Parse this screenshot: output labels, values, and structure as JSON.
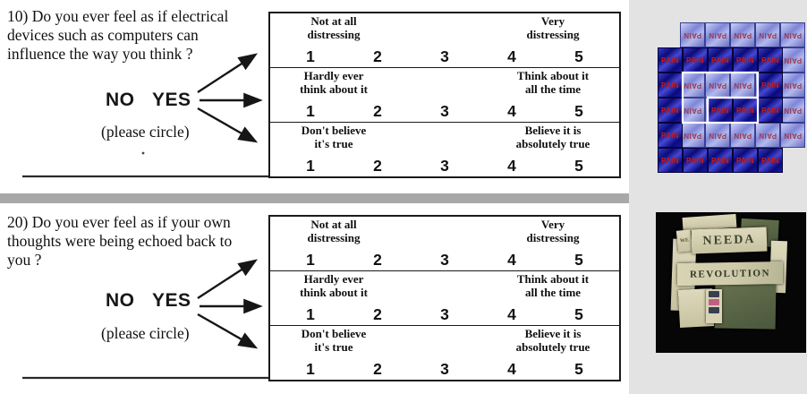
{
  "page": {
    "left_bg": "#ffffff",
    "right_panel_bg": "#e3e3e3",
    "divider_color": "#a8a8a8"
  },
  "questionnaire": {
    "questions": [
      {
        "lines": [
          "10) Do you ever feel as if electrical",
          "devices such as computers can",
          "influence the way you think ?"
        ],
        "no_label": "NO",
        "yes_label": "YES",
        "circle_hint": "(please circle)"
      },
      {
        "lines": [
          "20) Do you ever feel as if your own",
          "thoughts were being echoed back to",
          "you ?"
        ],
        "no_label": "NO",
        "yes_label": "YES",
        "circle_hint": "(please circle)"
      }
    ],
    "scale_rows": [
      {
        "left_line1": "Not at all",
        "left_line2": "distressing",
        "right_line1": "Very",
        "right_line2": "distressing",
        "n1": "1",
        "n2": "2",
        "n3": "3",
        "n4": "4",
        "n5": "5"
      },
      {
        "left_line1": "Hardly ever",
        "left_line2": "think about it",
        "right_line1": "Think about it",
        "right_line2": "all the time",
        "n1": "1",
        "n2": "2",
        "n3": "3",
        "n4": "4",
        "n5": "5"
      },
      {
        "left_line1": "Don't believe",
        "left_line2": "it's true",
        "right_line1": "Believe it is",
        "right_line2": "absolutely true",
        "n1": "1",
        "n2": "2",
        "n3": "3",
        "n4": "4",
        "n5": "5"
      }
    ]
  },
  "pain_image": {
    "word": "PAIN",
    "word_color": "#c41f2c",
    "dark_tile_color": "#0b0b7a",
    "light_tile_color": "#8d95dd",
    "outline_color": "#ffffff",
    "front_pattern": [
      [
        "P",
        "P",
        "P",
        "P",
        "P"
      ],
      [
        "P",
        ".",
        ".",
        ".",
        "P"
      ],
      [
        "P",
        ".",
        "P",
        "P",
        "P"
      ],
      [
        "P",
        ".",
        ".",
        ".",
        "."
      ],
      [
        "P",
        "P",
        "P",
        "P",
        "P"
      ]
    ]
  },
  "money_image": {
    "bg": "#060606",
    "word_small": "WE",
    "word_top": "NEEDA",
    "word_middle": "REVOLUTION"
  }
}
